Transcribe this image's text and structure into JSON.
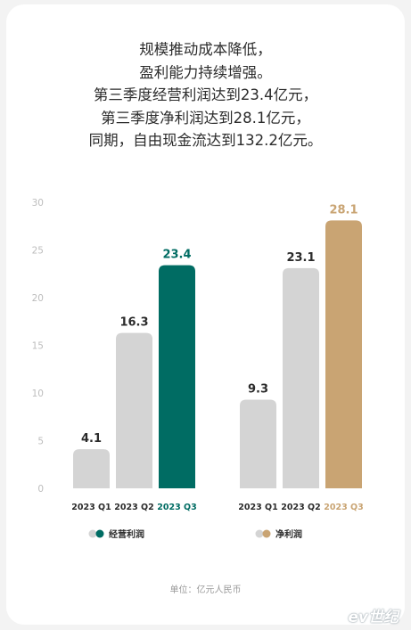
{
  "headline": {
    "lines": [
      "规模推动成本降低，",
      "盈利能力持续增强。",
      "第三季度经营利润达到23.4亿元，",
      "第三季度净利润达到28.1亿元，",
      "同期，自由现金流达到132.2亿元。"
    ]
  },
  "chart_data": {
    "type": "bar",
    "ylim": [
      0,
      30
    ],
    "yticks": [
      0,
      5,
      10,
      15,
      20,
      25,
      30
    ],
    "grid": false,
    "groups": [
      {
        "name": "经营利润",
        "categories": [
          "2023 Q1",
          "2023 Q2",
          "2023 Q3"
        ],
        "values": [
          4.1,
          16.3,
          23.4
        ],
        "labels": [
          "4.1",
          "16.3",
          "23.4"
        ],
        "highlight_color": "#006c63"
      },
      {
        "name": "净利润",
        "categories": [
          "2023 Q1",
          "2023 Q2",
          "2023 Q3"
        ],
        "values": [
          9.3,
          23.1,
          28.1
        ],
        "labels": [
          "9.3",
          "23.1",
          "28.1"
        ],
        "highlight_color": "#c9a473"
      }
    ],
    "colors": {
      "base": "#d4d4d4",
      "axis_text": "#bdbdbd",
      "label_text": "#2b2b2b"
    }
  },
  "footer": {
    "unit": "单位：亿元人民币"
  },
  "watermark": "ev世纪"
}
